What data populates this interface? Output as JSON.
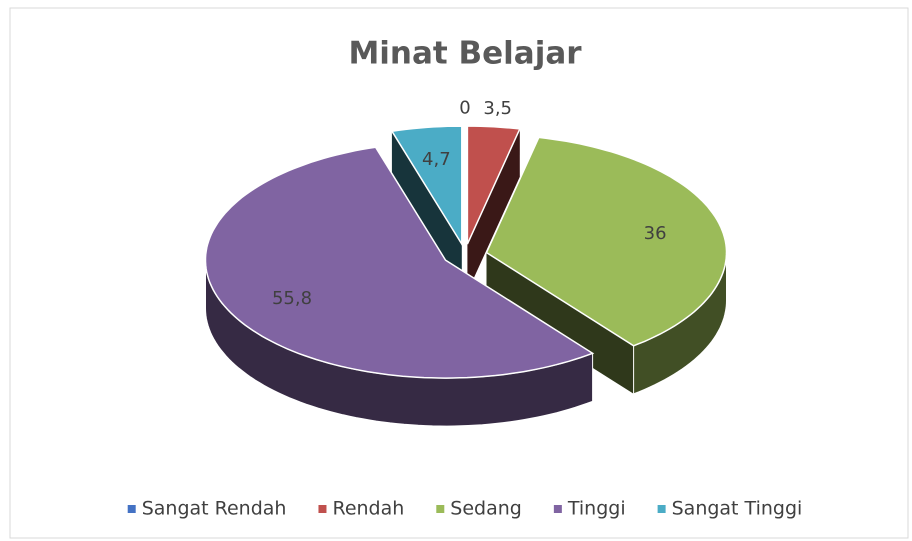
{
  "chart_data": {
    "type": "pie",
    "title": "Minat Belajar",
    "categories": [
      "Sangat Rendah",
      "Rendah",
      "Sedang",
      "Tinggi",
      "Sangat Tinggi"
    ],
    "values": [
      0,
      3.5,
      36,
      55.8,
      4.7
    ],
    "value_labels": [
      "0",
      "3,5",
      "36",
      "55,8",
      "4,7"
    ],
    "colors": [
      "#4472c4",
      "#c0504d",
      "#9bbb59",
      "#8064a2",
      "#4bacc6"
    ],
    "legend": "bottom"
  }
}
